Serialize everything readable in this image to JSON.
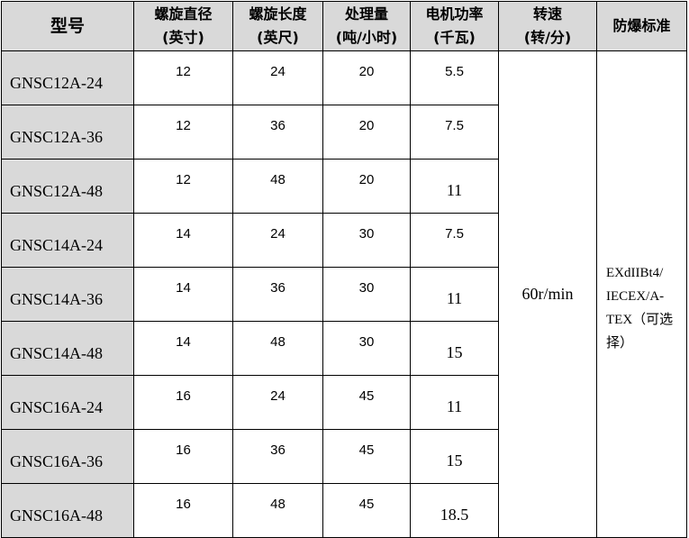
{
  "headers": [
    {
      "l1": "型号",
      "l2": ""
    },
    {
      "l1": "螺旋直径",
      "l2": "(英寸)"
    },
    {
      "l1": "螺旋长度",
      "l2": "(英尺)"
    },
    {
      "l1": "处理量",
      "l2": "(吨/小时)"
    },
    {
      "l1": "电机功率",
      "l2": "(千瓦)"
    },
    {
      "l1": "转速",
      "l2": "(转/分)"
    },
    {
      "l1": "防爆标准",
      "l2": ""
    }
  ],
  "rows": [
    [
      "GNSC12A-24",
      "12",
      "24",
      "20",
      "5.5"
    ],
    [
      "GNSC12A-36",
      "12",
      "36",
      "20",
      "7.5"
    ],
    [
      "GNSC12A-48",
      "12",
      "48",
      "20",
      "11"
    ],
    [
      "GNSC14A-24",
      "14",
      "24",
      "30",
      "7.5"
    ],
    [
      "GNSC14A-36",
      "14",
      "36",
      "30",
      "11"
    ],
    [
      "GNSC14A-48",
      "14",
      "48",
      "30",
      "15"
    ],
    [
      "GNSC16A-24",
      "16",
      "24",
      "45",
      "11"
    ],
    [
      "GNSC16A-36",
      "16",
      "36",
      "45",
      "15"
    ],
    [
      "GNSC16A-48",
      "16",
      "48",
      "45",
      "18.5"
    ]
  ],
  "speed": "60r/min",
  "standard": {
    "l1": "EXdIIBt4/",
    "l2": "IECEX/A-",
    "l3": "TEX（可选",
    "l4": "择）"
  }
}
